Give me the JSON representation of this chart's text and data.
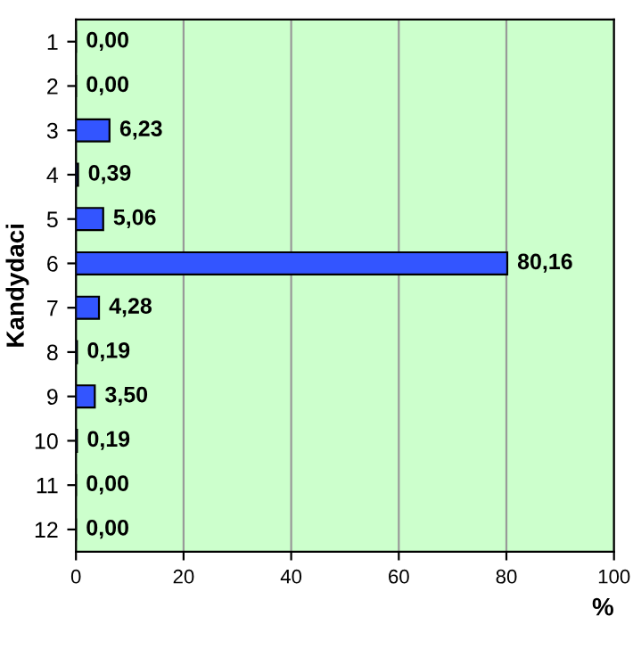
{
  "chart_data": {
    "type": "bar",
    "orientation": "horizontal",
    "xlabel": "%",
    "ylabel": "Kandydaci",
    "categories": [
      "1",
      "2",
      "3",
      "4",
      "5",
      "6",
      "7",
      "8",
      "9",
      "10",
      "11",
      "12"
    ],
    "values": [
      0,
      0,
      6.23,
      0.39,
      5.06,
      80.16,
      4.28,
      0.19,
      3.5,
      0.19,
      0,
      0
    ],
    "value_labels": [
      "0,00",
      "0,00",
      "6,23",
      "0,39",
      "5,06",
      "80,16",
      "4,28",
      "0,19",
      "3,50",
      "0,19",
      "0,00",
      "0,00"
    ],
    "color": "#3355ff",
    "xlim": [
      0,
      100
    ],
    "xticks": [
      0,
      20,
      40,
      60,
      80,
      100
    ],
    "grid": "x"
  }
}
